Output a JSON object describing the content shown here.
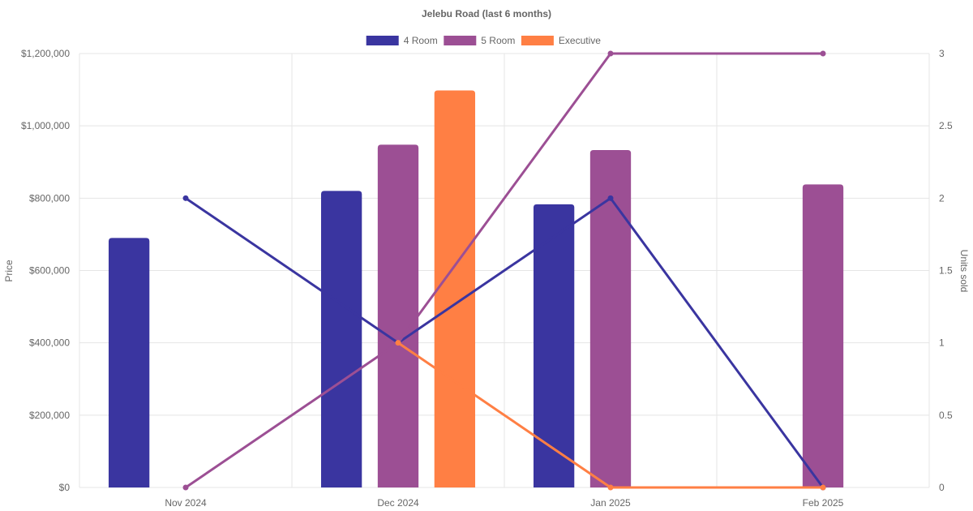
{
  "chart_data": {
    "type": "bar",
    "title": "Jelebu Road (last 6 months)",
    "categories": [
      "Nov 2024",
      "Dec 2024",
      "Jan 2025",
      "Feb 2025"
    ],
    "ylabel": "Price",
    "y2label": "Units sold",
    "ylim": [
      0,
      1200000
    ],
    "y2lim": [
      0,
      3
    ],
    "yticks": [
      "$0",
      "$200,000",
      "$400,000",
      "$600,000",
      "$800,000",
      "$1,000,000",
      "$1,200,000"
    ],
    "y2ticks": [
      "0",
      "0.5",
      "1",
      "1.5",
      "2",
      "2.5",
      "3"
    ],
    "legend_position": "top-center",
    "grid": true,
    "series": [
      {
        "name": "4 Room",
        "color": "#3a35a0",
        "prices": [
          690000,
          820000,
          783000,
          null
        ],
        "units": [
          2,
          1,
          2,
          0
        ]
      },
      {
        "name": "5 Room",
        "color": "#9c4f94",
        "prices": [
          null,
          948000,
          933000,
          838000
        ],
        "units": [
          0,
          1,
          3,
          3
        ]
      },
      {
        "name": "Executive",
        "color": "#ff7f44",
        "prices": [
          null,
          1098000,
          null,
          null
        ],
        "units": [
          null,
          1,
          0,
          0
        ]
      }
    ]
  }
}
